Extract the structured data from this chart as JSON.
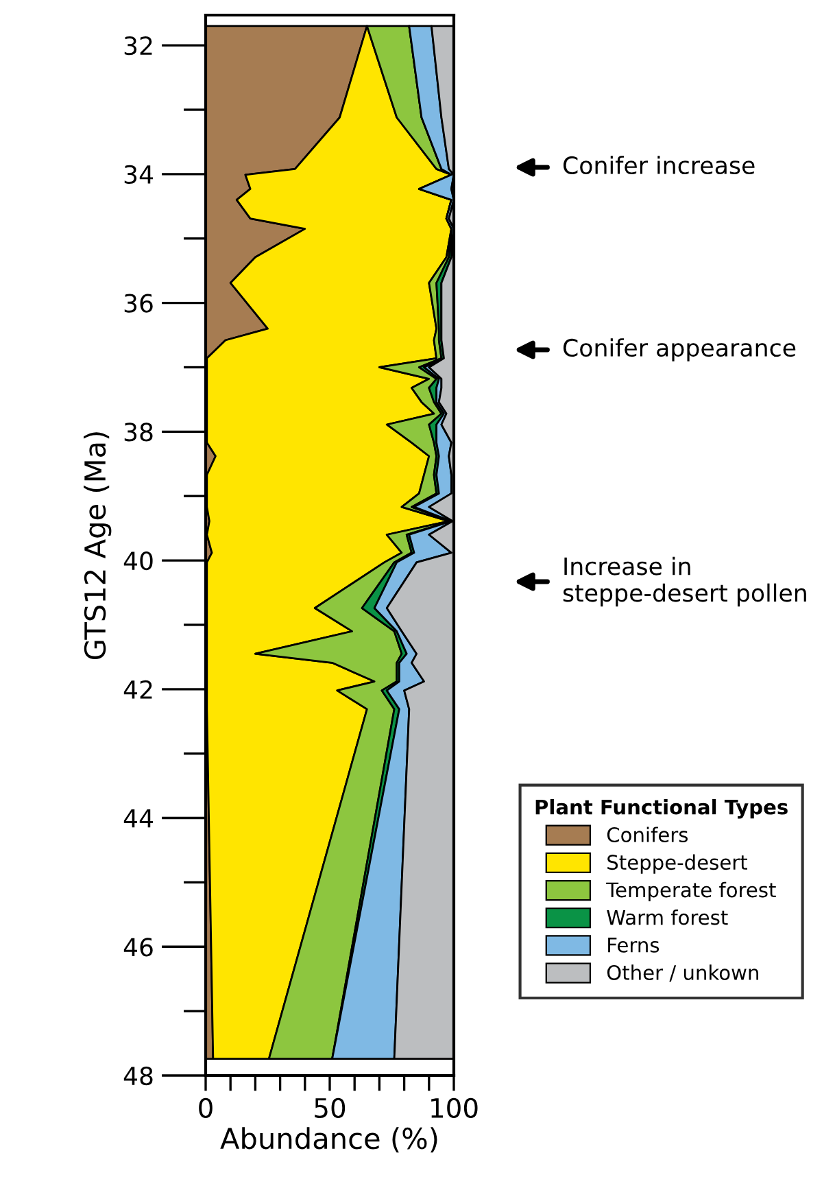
{
  "chart_data": {
    "type": "area",
    "orientation": "horizontal",
    "stacked": true,
    "xlabel": "Abundance (%)",
    "ylabel": "GTS12 Age (Ma)",
    "legend_title": "Plant Functional Types",
    "legend": "right",
    "xlim": [
      0,
      100
    ],
    "xticks": [
      0,
      {
        "value": 10,
        "label": null
      },
      {
        "value": 20,
        "label": null
      },
      {
        "value": 30,
        "label": null
      },
      {
        "value": 40,
        "label": null
      },
      50,
      {
        "value": 60,
        "label": null
      },
      {
        "value": 70,
        "label": null
      },
      {
        "value": 80,
        "label": null
      },
      {
        "value": 90,
        "label": null
      },
      100
    ],
    "ylim": [
      48,
      31.53
    ],
    "yticks": [
      32,
      {
        "value": 33,
        "label": null
      },
      34,
      {
        "value": 35,
        "label": null
      },
      36,
      {
        "value": 37,
        "label": null
      },
      38,
      {
        "value": 39,
        "label": null
      },
      40,
      {
        "value": 41,
        "label": null
      },
      42,
      {
        "value": 43,
        "label": null
      },
      44,
      {
        "value": 45,
        "label": null
      },
      46,
      {
        "value": 47,
        "label": null
      },
      48
    ],
    "x": [
      31.7,
      33.12,
      33.92,
      34.01,
      34.23,
      34.4,
      34.69,
      34.85,
      35.29,
      35.69,
      36.4,
      36.58,
      36.86,
      37.0,
      37.18,
      37.32,
      37.54,
      37.72,
      37.89,
      38.17,
      38.38,
      38.67,
      38.96,
      39.17,
      39.39,
      39.6,
      39.88,
      40.03,
      40.74,
      41.1,
      41.45,
      41.59,
      41.88,
      42.02,
      42.31,
      47.74
    ],
    "series": [
      {
        "name": "Conifers",
        "color": "#a67c52",
        "values": [
          65,
          54,
          36,
          16,
          18,
          12.5,
          18,
          40,
          20,
          10,
          25,
          8,
          0.5,
          0.5,
          0.5,
          0.5,
          0.5,
          0.5,
          0.5,
          0.5,
          4,
          0.5,
          0.5,
          0.5,
          1.5,
          0.5,
          2.5,
          0.5,
          0.5,
          0.5,
          0.5,
          0.5,
          0.5,
          0.5,
          0.5,
          3
        ]
      },
      {
        "name": "Steppe-desert",
        "color": "#ffe500",
        "values": [
          0,
          23,
          57,
          83,
          68,
          86.5,
          79,
          59,
          77,
          80,
          68,
          84,
          92.5,
          69.5,
          89.5,
          82.5,
          86.5,
          91.5,
          72.5,
          82.5,
          86,
          87.5,
          85.5,
          78.5,
          96.5,
          72.5,
          76.5,
          71.5,
          43.5,
          58.5,
          19.5,
          50.5,
          67.5,
          52.5,
          64.5,
          22.5
        ]
      },
      {
        "name": "Temperate forest",
        "color": "#8dc63f",
        "values": [
          17,
          10,
          2,
          0,
          0,
          0,
          0,
          0,
          1,
          3,
          1,
          2,
          2,
          16,
          3,
          7,
          5,
          3,
          17,
          9,
          3,
          4,
          7,
          4,
          1,
          8,
          4,
          4,
          19,
          17,
          59,
          26,
          9,
          18,
          11,
          25.5
        ]
      },
      {
        "name": "Warm forest",
        "color": "#0a9346",
        "values": [
          0,
          0,
          0,
          0,
          0,
          0,
          0,
          0,
          1,
          2,
          1,
          1,
          1,
          2,
          1,
          3,
          1,
          1,
          3,
          1,
          1,
          1,
          1,
          1,
          0,
          1,
          1,
          1,
          5,
          1,
          2,
          1,
          1,
          2,
          2,
          0
        ]
      },
      {
        "name": "Ferns",
        "color": "#7fb9e4",
        "values": [
          9,
          8,
          3,
          1,
          13,
          1,
          1,
          1,
          0,
          0,
          0,
          0,
          0,
          2,
          1,
          2,
          1,
          1,
          2,
          6,
          4,
          6,
          5,
          6,
          0.5,
          8,
          15,
          8,
          5,
          2,
          4,
          5,
          10,
          7,
          4,
          25
        ]
      },
      {
        "name": "Other / unkown",
        "color": "#bcbec0",
        "values": [
          9,
          5,
          2,
          0,
          1,
          0,
          2,
          0,
          1,
          5,
          5,
          5,
          4,
          10,
          5,
          5,
          6,
          3,
          5,
          1,
          2,
          1,
          1,
          10,
          0.5,
          10,
          1,
          15,
          27,
          21,
          15,
          17,
          12,
          20,
          18,
          24
        ]
      }
    ],
    "annotations": [
      "Conifer increase",
      "Conifer appearance",
      "Increase in steppe-desert pollen"
    ]
  }
}
